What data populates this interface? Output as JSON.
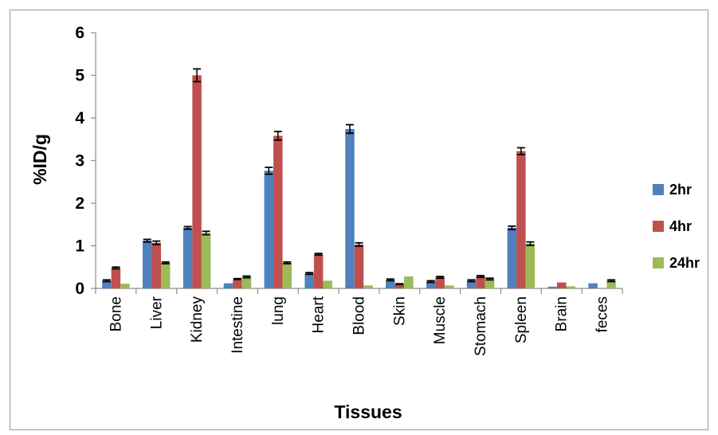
{
  "chart_data": {
    "type": "bar",
    "title": "",
    "xlabel": "Tissues",
    "ylabel": "%ID/g",
    "ylim": [
      0,
      6
    ],
    "yticks": [
      "0",
      "1",
      "2",
      "3",
      "4",
      "5",
      "6"
    ],
    "grid": false,
    "legend_position": "right",
    "categories": [
      "Bone",
      "Liver",
      "Kidney",
      "Intestine",
      "lung",
      "Heart",
      "Blood",
      "Skin",
      "Muscle",
      "Stomach",
      "Spleen",
      "Brain",
      "feces"
    ],
    "series": [
      {
        "name": "2hr",
        "color": "#4F81BD",
        "values": [
          0.18,
          1.12,
          1.42,
          0.12,
          2.76,
          0.35,
          3.74,
          0.2,
          0.16,
          0.18,
          1.42,
          0.04,
          0.12
        ],
        "errors": [
          0.02,
          0.03,
          0.03,
          0.0,
          0.08,
          0.02,
          0.1,
          0.02,
          0.02,
          0.02,
          0.04,
          0.0,
          0.0
        ]
      },
      {
        "name": "4hr",
        "color": "#C0504D",
        "values": [
          0.48,
          1.07,
          5.0,
          0.22,
          3.58,
          0.8,
          1.03,
          0.1,
          0.26,
          0.28,
          3.22,
          0.14,
          0.0
        ],
        "errors": [
          0.02,
          0.04,
          0.15,
          0.01,
          0.1,
          0.02,
          0.04,
          0.01,
          0.02,
          0.02,
          0.08,
          0.0,
          0.0
        ]
      },
      {
        "name": "24hr",
        "color": "#9BBB59",
        "values": [
          0.11,
          0.6,
          1.3,
          0.27,
          0.6,
          0.18,
          0.07,
          0.28,
          0.07,
          0.22,
          1.05,
          0.05,
          0.18
        ],
        "errors": [
          0.0,
          0.02,
          0.04,
          0.02,
          0.02,
          0.0,
          0.0,
          0.0,
          0.0,
          0.02,
          0.04,
          0.0,
          0.02
        ]
      }
    ]
  }
}
